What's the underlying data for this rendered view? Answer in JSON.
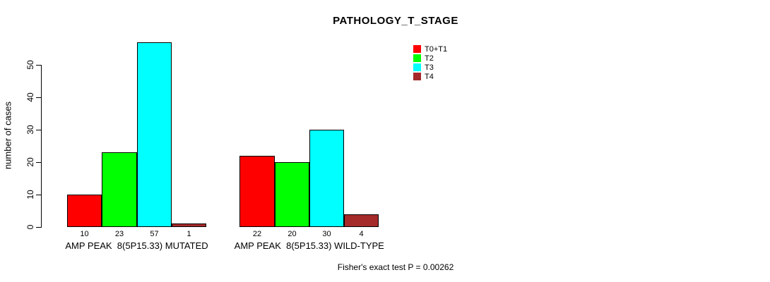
{
  "chart_data": {
    "type": "bar",
    "title": "PATHOLOGY_T_STAGE",
    "ylabel": "number of cases",
    "xlabel": "",
    "yticks": [
      0,
      10,
      20,
      30,
      40,
      50
    ],
    "ylim": [
      0,
      57
    ],
    "grid": false,
    "legend_position": "top-right",
    "categories": [
      "AMP PEAK  8(5P15.33) MUTATED",
      "AMP PEAK  8(5P15.33) WILD-TYPE"
    ],
    "series": [
      {
        "name": "T0+T1",
        "color": "#FF0000",
        "values": [
          10,
          22
        ]
      },
      {
        "name": "T2",
        "color": "#00FF00",
        "values": [
          23,
          20
        ]
      },
      {
        "name": "T3",
        "color": "#00FFFF",
        "values": [
          57,
          30
        ]
      },
      {
        "name": "T4",
        "color": "#A52A2A",
        "values": [
          1,
          4
        ]
      }
    ],
    "bar_value_labels": [
      [
        10,
        23,
        57,
        1
      ],
      [
        22,
        20,
        30,
        4
      ]
    ],
    "annotation": "Fisher's exact test P = 0.00262",
    "colors": {
      "axis": "#000000",
      "text": "#000000",
      "background": "#FFFFFF"
    }
  }
}
